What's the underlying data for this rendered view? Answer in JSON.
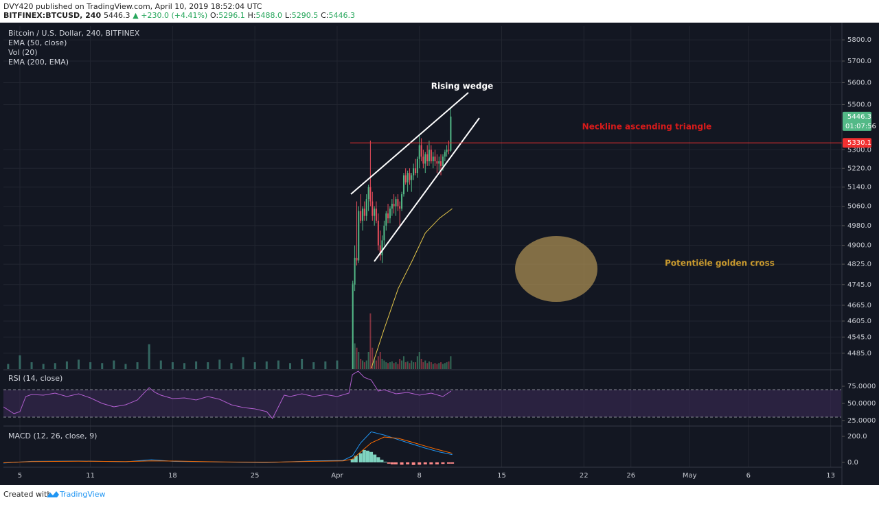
{
  "header": {
    "author": "DVY420",
    "published": "published on TradingView.com, April 10, 2019 18:52:04 UTC",
    "symbol": "BITFINEX:BTCUSD, 240",
    "last": "5446.3",
    "change": "▲ +230.0 (+4.41%)",
    "ohlc": [
      {
        "label": "O:",
        "value": "5296.1"
      },
      {
        "label": "H:",
        "value": "5488.0"
      },
      {
        "label": "L:",
        "value": "5290.5"
      },
      {
        "label": "C:",
        "value": "5446.3"
      }
    ]
  },
  "footer": {
    "created": "Created with",
    "brand": "TradingView"
  },
  "chart_data": [
    {
      "type": "candlestick",
      "title": "Bitcoin / U.S. Dollar, 240, BITFINEX",
      "log_scale": true,
      "grid": true,
      "ylim": [
        4427,
        5866
      ],
      "yticks": [
        {
          "value": 5800,
          "label": "5800.0"
        },
        {
          "value": 5700,
          "label": "5700.0"
        },
        {
          "value": 5600,
          "label": "5600.0"
        },
        {
          "value": 5500,
          "label": "5500.0"
        },
        {
          "value": 5300,
          "label": "5300.0"
        },
        {
          "value": 5220,
          "label": "5220.0"
        },
        {
          "value": 5140,
          "label": "5140.0"
        },
        {
          "value": 5060,
          "label": "5060.0"
        },
        {
          "value": 4980,
          "label": "4980.0"
        },
        {
          "value": 4900,
          "label": "4900.0"
        },
        {
          "value": 4825,
          "label": "4825.0"
        },
        {
          "value": 4745,
          "label": "4745.0"
        },
        {
          "value": 4665,
          "label": "4665.0"
        },
        {
          "value": 4605,
          "label": "4605.0"
        },
        {
          "value": 4545,
          "label": "4545.0"
        },
        {
          "value": 4485,
          "label": "4485.0"
        }
      ],
      "xlim": [
        3.6,
        74.9
      ],
      "xticks": [
        5,
        11,
        18,
        25,
        {
          "value": 32,
          "label": "Apr"
        },
        {
          "value": 39,
          "label": "8"
        },
        {
          "value": 46,
          "label": "15"
        },
        {
          "value": 53,
          "label": "22"
        },
        {
          "value": 57,
          "label": "26"
        },
        {
          "value": 62,
          "label": "May"
        },
        {
          "value": 67,
          "label": "6"
        },
        {
          "value": 74,
          "label": "13"
        }
      ],
      "up_color": "#53b987",
      "down_color": "#eb4d5c",
      "candles": {
        "x": [
          33.33,
          33.5,
          33.67,
          33.83,
          34,
          34.17,
          34.33,
          34.5,
          34.67,
          34.83,
          35,
          35.17,
          35.33,
          35.5,
          35.67,
          35.83,
          36,
          36.17,
          36.33,
          36.5,
          36.67,
          36.83,
          37,
          37.17,
          37.33,
          37.5,
          37.67,
          37.83,
          38,
          38.17,
          38.33,
          38.5,
          38.67,
          38.83,
          39,
          39.17,
          39.33,
          39.5,
          39.67,
          39.83,
          40,
          40.17,
          40.33,
          40.5,
          40.67,
          40.83,
          41,
          41.17,
          41.33,
          41.5,
          41.67
        ],
        "open": [
          4420,
          4745,
          4850,
          4840,
          5040,
          5000,
          5050,
          5020,
          5090,
          5140,
          5080,
          5020,
          5050,
          5000,
          4900,
          4860,
          4920,
          4980,
          5030,
          5010,
          5050,
          5070,
          5060,
          5090,
          5060,
          5050,
          5110,
          5190,
          5160,
          5200,
          5170,
          5190,
          5220,
          5200,
          5260,
          5320,
          5270,
          5240,
          5280,
          5250,
          5300,
          5250,
          5270,
          5250,
          5240,
          5250,
          5230,
          5270,
          5290,
          5300,
          5296.1
        ],
        "high": [
          4760,
          4900,
          5080,
          5060,
          5110,
          5060,
          5080,
          5110,
          5150,
          5340,
          5120,
          5060,
          5080,
          5030,
          4960,
          4940,
          5000,
          5040,
          5070,
          5060,
          5090,
          5110,
          5100,
          5110,
          5080,
          5120,
          5200,
          5220,
          5210,
          5220,
          5200,
          5240,
          5260,
          5270,
          5360,
          5350,
          5300,
          5290,
          5320,
          5340,
          5320,
          5290,
          5300,
          5280,
          5270,
          5280,
          5280,
          5300,
          5320,
          5340,
          5488
        ],
        "low": [
          4410,
          4720,
          4820,
          4830,
          4990,
          4960,
          5000,
          5000,
          5040,
          5060,
          5000,
          4980,
          4990,
          4880,
          4840,
          4830,
          4900,
          4960,
          4990,
          4990,
          5020,
          5030,
          5020,
          5040,
          4980,
          5040,
          5100,
          5150,
          5120,
          5150,
          5120,
          5170,
          5190,
          5180,
          5220,
          5250,
          5220,
          5200,
          5230,
          5230,
          5240,
          5220,
          5230,
          5200,
          5210,
          5190,
          5210,
          5250,
          5270,
          5280,
          5290.5
        ],
        "close": [
          4745,
          4850,
          4840,
          5040,
          5000,
          5050,
          5020,
          5090,
          5140,
          5080,
          5020,
          5050,
          5000,
          4900,
          4860,
          4920,
          4980,
          5030,
          5010,
          5050,
          5070,
          5060,
          5090,
          5060,
          5050,
          5110,
          5190,
          5160,
          5200,
          5170,
          5190,
          5220,
          5200,
          5260,
          5320,
          5270,
          5240,
          5280,
          5250,
          5300,
          5250,
          5270,
          5250,
          5240,
          5250,
          5230,
          5270,
          5290,
          5300,
          5296.1,
          5446.3
        ],
        "volume": [
          100,
          30,
          25,
          20,
          12,
          10,
          8,
          10,
          20,
          65,
          25,
          12,
          10,
          15,
          20,
          12,
          10,
          8,
          7,
          8,
          9,
          7,
          8,
          6,
          12,
          10,
          15,
          8,
          9,
          7,
          10,
          8,
          8,
          15,
          20,
          12,
          8,
          10,
          7,
          9,
          8,
          6,
          7,
          6,
          7,
          8,
          6,
          7,
          8,
          9,
          15
        ]
      },
      "volume": {
        "name": "Vol (20)",
        "color": "#3d7a72",
        "x": [
          4,
          5,
          6,
          7,
          8,
          9,
          10,
          11,
          12,
          13,
          14,
          15,
          16,
          17,
          18,
          19,
          20,
          21,
          22,
          23,
          24,
          25,
          26,
          27,
          28,
          29,
          30,
          31,
          32
        ],
        "values": [
          6,
          16,
          8,
          6,
          7,
          9,
          11,
          8,
          7,
          10,
          6,
          8,
          29,
          10,
          8,
          7,
          9,
          8,
          11,
          7,
          14,
          8,
          9,
          10,
          7,
          12,
          8,
          9,
          10
        ]
      },
      "series": [
        {
          "name": "EMA (50, close)",
          "color": "#e6c84a",
          "x": [
            34.9,
            36.0,
            37.2,
            38.4,
            39.5,
            40.7,
            41.8
          ],
          "values": [
            4430,
            4575,
            4730,
            4840,
            4950,
            5010,
            5050
          ]
        }
      ],
      "ema_200": {
        "name": "EMA (200, EMA)"
      },
      "last_price": {
        "value": 5446.3,
        "countdown": "01:07:56",
        "color": "#53b987"
      },
      "neckline": {
        "value": 5330.1,
        "color": "#f23030"
      },
      "annotations": [
        {
          "text": "Rising wedge",
          "color": "#ffffff"
        },
        {
          "text": "Neckline ascending triangle",
          "color": "#d81b1b"
        },
        {
          "text": "Potentiële golden cross",
          "color": "#c99a2e"
        }
      ]
    },
    {
      "type": "line",
      "title": "RSI (14, close)",
      "color": "#b25fd0",
      "band_color": "#3a2a55",
      "bands": [
        70,
        30
      ],
      "ylim": [
        18,
        98
      ],
      "yticks": [
        {
          "value": 75,
          "label": "75.0000"
        },
        {
          "value": 50,
          "label": "50.0000"
        },
        {
          "value": 25,
          "label": "25.0000"
        }
      ],
      "x": [
        3.6,
        4.5,
        5,
        5.5,
        6,
        7,
        8,
        9,
        10,
        11,
        12,
        13,
        14,
        15,
        16,
        16.5,
        17,
        18,
        19,
        20,
        21,
        22,
        23,
        24,
        25,
        26,
        26.5,
        27,
        27.5,
        28,
        29,
        30,
        31,
        32,
        33,
        33.3,
        33.8,
        34.3,
        34.9,
        35.5,
        36,
        37,
        38,
        39,
        40,
        41,
        41.7
      ],
      "values": [
        45,
        35,
        38,
        60,
        63,
        62,
        65,
        60,
        64,
        58,
        50,
        45,
        48,
        55,
        73,
        66,
        62,
        57,
        58,
        55,
        60,
        56,
        48,
        44,
        42,
        38,
        28,
        45,
        62,
        60,
        64,
        60,
        63,
        60,
        65,
        92,
        97,
        88,
        84,
        68,
        70,
        64,
        66,
        62,
        65,
        60,
        68
      ]
    },
    {
      "type": "macd",
      "title": "MACD (12, 26, close, 9)",
      "ylim": [
        -32,
        274
      ],
      "yticks": [
        {
          "value": 200,
          "label": "200.0"
        },
        {
          "value": 0,
          "label": "0.0"
        }
      ],
      "macd": {
        "color": "#2196f3",
        "x": [
          3.6,
          6,
          10,
          14,
          16.2,
          18,
          22,
          26,
          30,
          32.5,
          33.3,
          34,
          34.9,
          36,
          37.2,
          38.4,
          39.5,
          40.7,
          41.8
        ],
        "values": [
          -5,
          8,
          10,
          5,
          20,
          8,
          3,
          -2,
          12,
          15,
          50,
          150,
          235,
          210,
          175,
          140,
          110,
          80,
          60
        ]
      },
      "signal": {
        "color": "#ff6d00",
        "x": [
          3.6,
          6,
          10,
          14,
          16.2,
          18,
          22,
          26,
          30,
          32.5,
          33.3,
          34,
          34.9,
          36,
          37.2,
          38.4,
          39.5,
          40.7,
          41.8
        ],
        "values": [
          -3,
          6,
          9,
          6,
          12,
          10,
          4,
          0,
          8,
          12,
          25,
          80,
          150,
          195,
          185,
          155,
          125,
          95,
          70
        ]
      },
      "histogram": {
        "up_color": "#7fd3c0",
        "down_color": "#ff8a8a",
        "x": [
          33.3,
          33.6,
          34,
          34.3,
          34.6,
          34.9,
          35.2,
          35.5,
          35.8,
          36.1,
          36.4,
          36.7,
          37,
          37.5,
          38,
          38.5,
          39,
          39.5,
          40,
          40.5,
          41,
          41.5,
          41.8
        ],
        "values": [
          25,
          50,
          70,
          95,
          90,
          80,
          60,
          40,
          20,
          5,
          -10,
          -15,
          -15,
          -18,
          -15,
          -20,
          -18,
          -15,
          -15,
          -15,
          -12,
          -10,
          -10
        ]
      }
    }
  ]
}
